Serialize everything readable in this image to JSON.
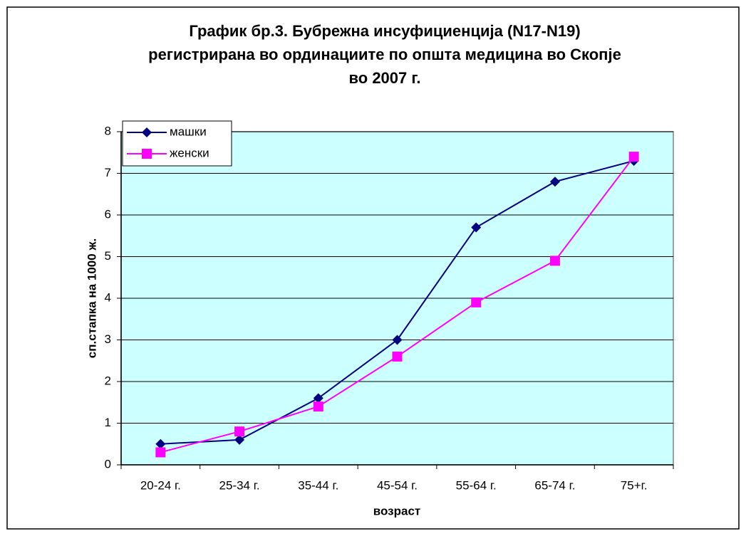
{
  "chart_data": {
    "type": "line",
    "title": [
      "График бр.3. Бубрежна инсуфициенција (N17-N19)",
      "регистрирана во ординациите по општа медицина во Скопје",
      "во 2007 г."
    ],
    "x_label": "возраст",
    "y_label": "сп.стапка на 1000 ж.",
    "categories": [
      "20-24 г.",
      "25-34 г.",
      "35-44 г.",
      "45-54 г.",
      "55-64 г.",
      "65-74 г.",
      "75+г."
    ],
    "series": [
      {
        "name": "машки",
        "color": "#000080",
        "marker": "diamond",
        "values": [
          0.5,
          0.6,
          1.6,
          3.0,
          5.7,
          6.8,
          7.3
        ]
      },
      {
        "name": "женски",
        "color": "#ff00ff",
        "marker": "square",
        "values": [
          0.3,
          0.8,
          1.4,
          2.6,
          3.9,
          4.9,
          7.4
        ]
      }
    ],
    "ylim": [
      0,
      8
    ],
    "yticks": [
      0,
      1,
      2,
      3,
      4,
      5,
      6,
      7,
      8
    ],
    "grid": true,
    "legend": "top-left",
    "plot_background": "#ccffff"
  }
}
